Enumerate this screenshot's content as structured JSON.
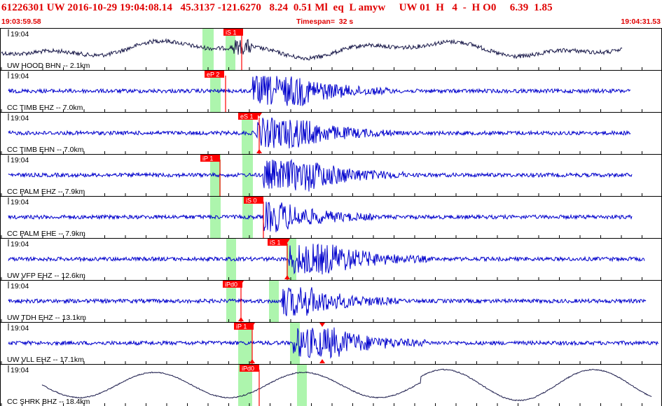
{
  "header": {
    "title": "61226301 UW 2016-10-29 19:04:08.14   45.3137 -121.6270   8.24  0.51 Ml  eq  L amyw     UW 01  H   4  -  H O0     6.39  1.85",
    "start_time": "19:03:59.58",
    "timespan": "Timespan=  32 s",
    "end_time": "19:04:31.53"
  },
  "panels": [
    {
      "label": "UW HOOD BHN -- 2.1km",
      "time": "19:04",
      "color": "#1a1a4a",
      "picks": [
        "iS 1"
      ]
    },
    {
      "label": "CC TIMB EHZ -- 7.0km",
      "time": "19:04",
      "color": "#0000cc",
      "picks": [
        "eP 2"
      ]
    },
    {
      "label": "CC TIMB EHN -- 7.0km",
      "time": "19:04",
      "color": "#0000cc",
      "picks": [
        "eS 1"
      ]
    },
    {
      "label": "CC PALM EHZ -- 7.9km",
      "time": "19:04",
      "color": "#0000cc",
      "picks": [
        "iP 1"
      ]
    },
    {
      "label": "CC PALM EHE -- 7.9km",
      "time": "19:04",
      "color": "#0000cc",
      "picks": [
        "iS 0"
      ]
    },
    {
      "label": "UW VFP EHZ -- 12.6km",
      "time": "19:04",
      "color": "#0000cc",
      "picks": [
        "iS 1"
      ]
    },
    {
      "label": "UW TDH EHZ -- 13.1km",
      "time": "19:04",
      "color": "#0000cc",
      "picks": [
        "iPd0"
      ]
    },
    {
      "label": "UW VLL EHZ -- 17.1km",
      "time": "19:04",
      "color": "#0000cc",
      "picks": [
        "iP 1"
      ]
    },
    {
      "label": "CC SHRK BHZ -- 18.4km",
      "time": "19:04",
      "color": "#1a1a4a",
      "picks": [
        "iPd0"
      ]
    }
  ],
  "colors": {
    "header_text": "#e00000",
    "pick_flag": "#ff0000",
    "window_band": "#adf5ad",
    "panel_border": "#000000"
  }
}
